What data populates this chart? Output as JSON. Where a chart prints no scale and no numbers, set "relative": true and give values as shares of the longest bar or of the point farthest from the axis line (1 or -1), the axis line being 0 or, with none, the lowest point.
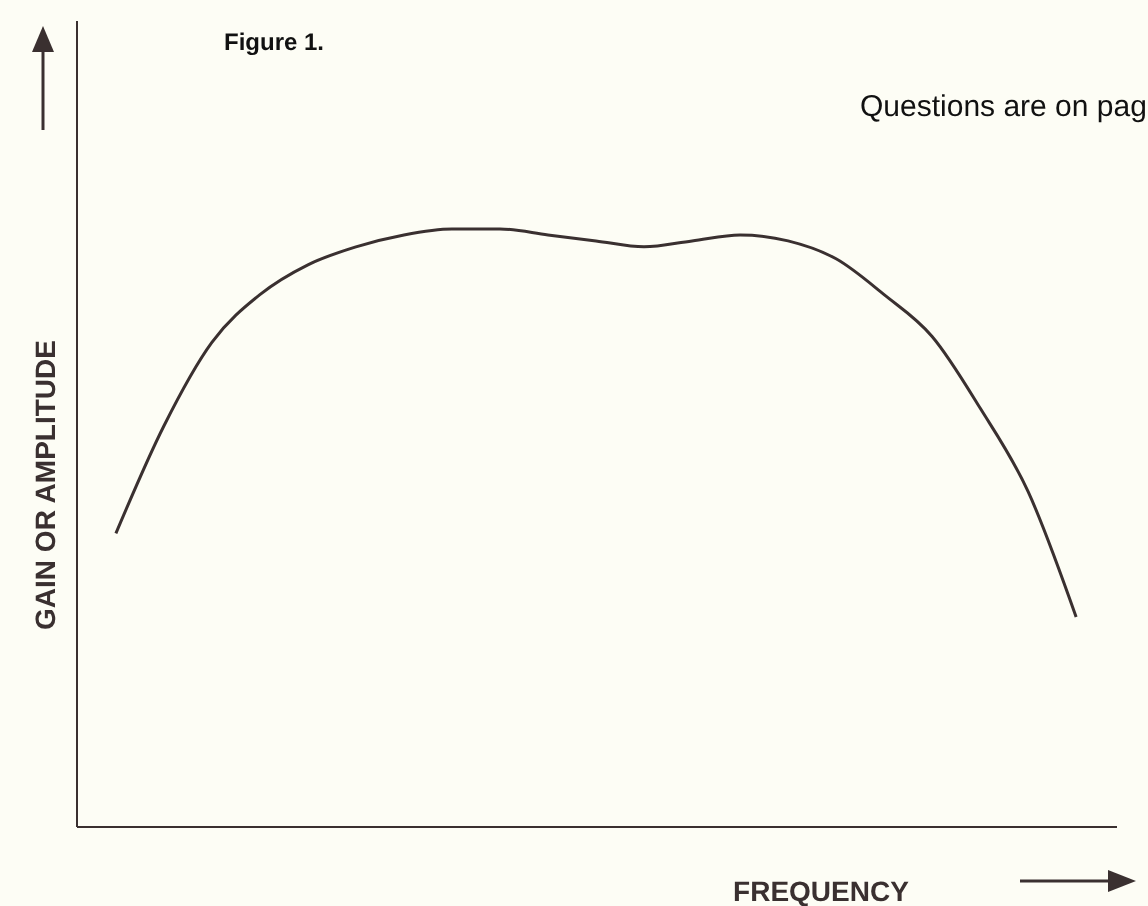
{
  "chart_data": {
    "type": "line",
    "title": "Figure 1.",
    "xlabel": "FREQUENCY",
    "ylabel": "GAIN OR AMPLITUDE",
    "relative": true,
    "annotations": [
      "Questions are on pag"
    ],
    "categories": [
      null,
      null,
      null,
      null,
      null,
      null,
      null,
      null,
      null,
      null,
      null,
      null,
      null,
      null,
      null,
      null,
      null,
      null,
      null,
      null,
      null
    ],
    "series": [
      {
        "color": "#3a3030",
        "values": [
          0.49,
          0.67,
          0.81,
          0.89,
          0.94,
          0.97,
          0.99,
          1.0,
          1.0,
          0.99,
          0.98,
          0.97,
          0.98,
          0.99,
          0.98,
          0.95,
          0.89,
          0.82,
          0.7,
          0.56,
          0.35
        ]
      }
    ]
  }
}
